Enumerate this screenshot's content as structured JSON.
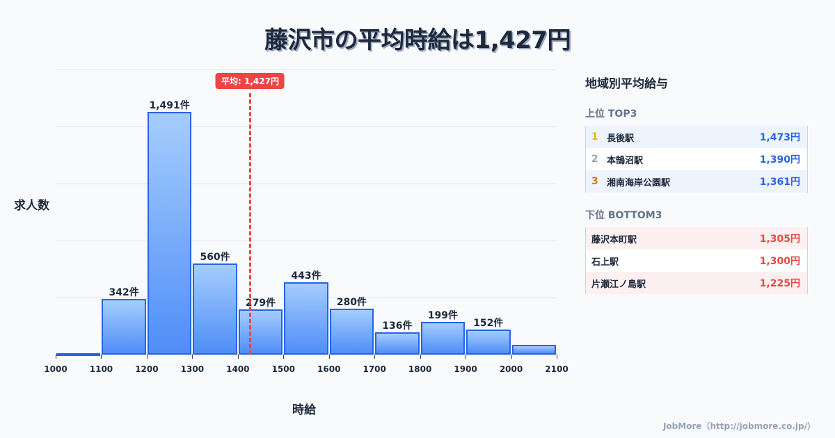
{
  "title": "藤沢市の平均時給は1,427円",
  "chart_data": {
    "type": "bar",
    "title": "藤沢市の平均時給は1,427円",
    "xlabel": "時給",
    "ylabel": "求人数",
    "bins": [
      {
        "from": 1000,
        "to": 1100,
        "value": 4,
        "label": ""
      },
      {
        "from": 1100,
        "to": 1200,
        "value": 342,
        "label": "342件"
      },
      {
        "from": 1200,
        "to": 1300,
        "value": 1491,
        "label": "1,491件"
      },
      {
        "from": 1300,
        "to": 1400,
        "value": 560,
        "label": "560件"
      },
      {
        "from": 1400,
        "to": 1500,
        "value": 279,
        "label": "279件"
      },
      {
        "from": 1500,
        "to": 1600,
        "value": 443,
        "label": "443件"
      },
      {
        "from": 1600,
        "to": 1700,
        "value": 280,
        "label": "280件"
      },
      {
        "from": 1700,
        "to": 1800,
        "value": 136,
        "label": "136件"
      },
      {
        "from": 1800,
        "to": 1900,
        "value": 199,
        "label": "199件"
      },
      {
        "from": 1900,
        "to": 2000,
        "value": 152,
        "label": "152件"
      },
      {
        "from": 2000,
        "to": 2100,
        "value": 60,
        "label": ""
      }
    ],
    "categories": [
      "1000-1100",
      "1100-1200",
      "1200-1300",
      "1300-1400",
      "1400-1500",
      "1500-1600",
      "1600-1700",
      "1700-1800",
      "1800-1900",
      "1900-2000",
      "2000-2100"
    ],
    "values": [
      4,
      342,
      1491,
      560,
      279,
      443,
      280,
      136,
      199,
      152,
      60
    ],
    "x_ticks": [
      "1000",
      "1100",
      "1200",
      "1300",
      "1400",
      "1500",
      "1600",
      "1700",
      "1800",
      "1900",
      "2000",
      "2100"
    ],
    "xlim": [
      1000,
      2100
    ],
    "ylim": [
      0,
      1750
    ],
    "grid": true,
    "average": {
      "value": 1427,
      "label": "平均: 1,427円"
    },
    "colors": {
      "bar_fill_top": "#a5cdfd",
      "bar_fill_bottom": "#4f8ef7",
      "bar_border": "#2563eb",
      "average_line": "#ef4444"
    }
  },
  "panel": {
    "title": "地域別平均給与",
    "top_title": "上位 TOP3",
    "top": [
      {
        "rank": "1",
        "name": "長後駅",
        "value": "1,473円",
        "rank_color": "#eab308"
      },
      {
        "rank": "2",
        "name": "本鵠沼駅",
        "value": "1,390円",
        "rank_color": "#94a3b8"
      },
      {
        "rank": "3",
        "name": "湘南海岸公園駅",
        "value": "1,361円",
        "rank_color": "#d97706"
      }
    ],
    "bottom_title": "下位 BOTTOM3",
    "bottom": [
      {
        "name": "藤沢本町駅",
        "value": "1,305円"
      },
      {
        "name": "石上駅",
        "value": "1,300円"
      },
      {
        "name": "片瀬江ノ島駅",
        "value": "1,225円"
      }
    ]
  },
  "footer": "JobMore（http://jobmore.co.jp/）"
}
